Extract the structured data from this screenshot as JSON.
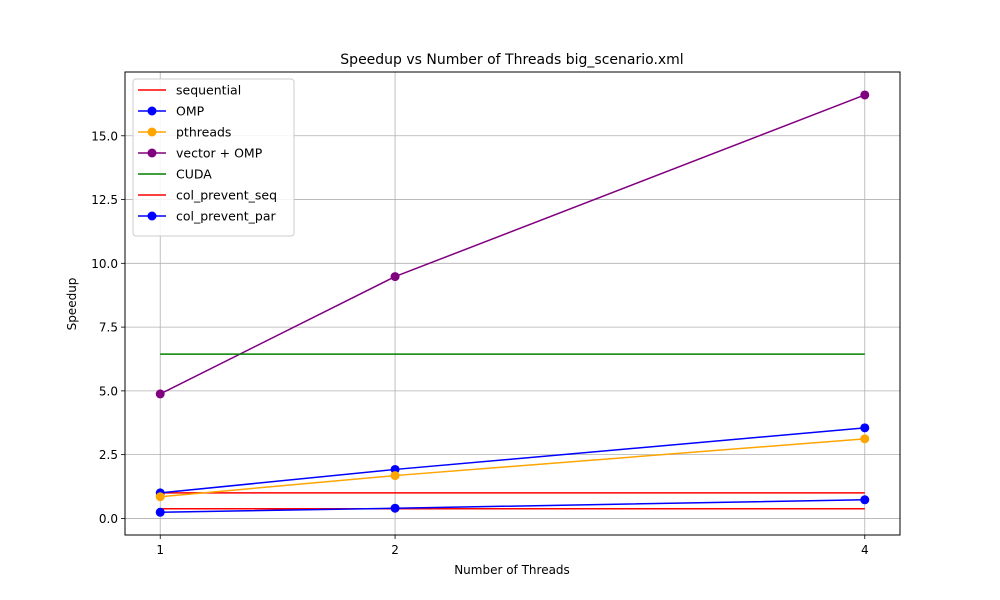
{
  "chart_data": {
    "type": "line",
    "title": "Speedup vs Number of Threads big_scenario.xml",
    "xlabel": "Number of Threads",
    "ylabel": "Speedup",
    "x": [
      1,
      2,
      4
    ],
    "x_ticks": [
      "1",
      "2",
      "4"
    ],
    "xlim": [
      0.85,
      4.15
    ],
    "ylim": [
      -0.65,
      17.5
    ],
    "y_ticks": [
      "0.0",
      "2.5",
      "5.0",
      "7.5",
      "10.0",
      "12.5",
      "15.0"
    ],
    "grid": true,
    "legend_position": "top-left",
    "series": [
      {
        "name": "sequential",
        "color": "#ff0000",
        "marker": false,
        "values": [
          1.0,
          1.0,
          1.0
        ]
      },
      {
        "name": "OMP",
        "color": "#0000ff",
        "marker": true,
        "values": [
          1.0,
          1.92,
          3.55
        ]
      },
      {
        "name": "pthreads",
        "color": "#ffa500",
        "marker": true,
        "values": [
          0.85,
          1.68,
          3.12
        ]
      },
      {
        "name": "vector + OMP",
        "color": "#800080",
        "marker": true,
        "values": [
          4.88,
          9.48,
          16.6
        ]
      },
      {
        "name": "CUDA",
        "color": "#008000",
        "marker": false,
        "values": [
          6.44,
          6.44,
          6.44
        ]
      },
      {
        "name": "col_prevent_seq",
        "color": "#ff0000",
        "marker": false,
        "values": [
          0.38,
          0.38,
          0.38
        ]
      },
      {
        "name": "col_prevent_par",
        "color": "#0000ff",
        "marker": true,
        "values": [
          0.24,
          0.4,
          0.73
        ]
      }
    ]
  }
}
